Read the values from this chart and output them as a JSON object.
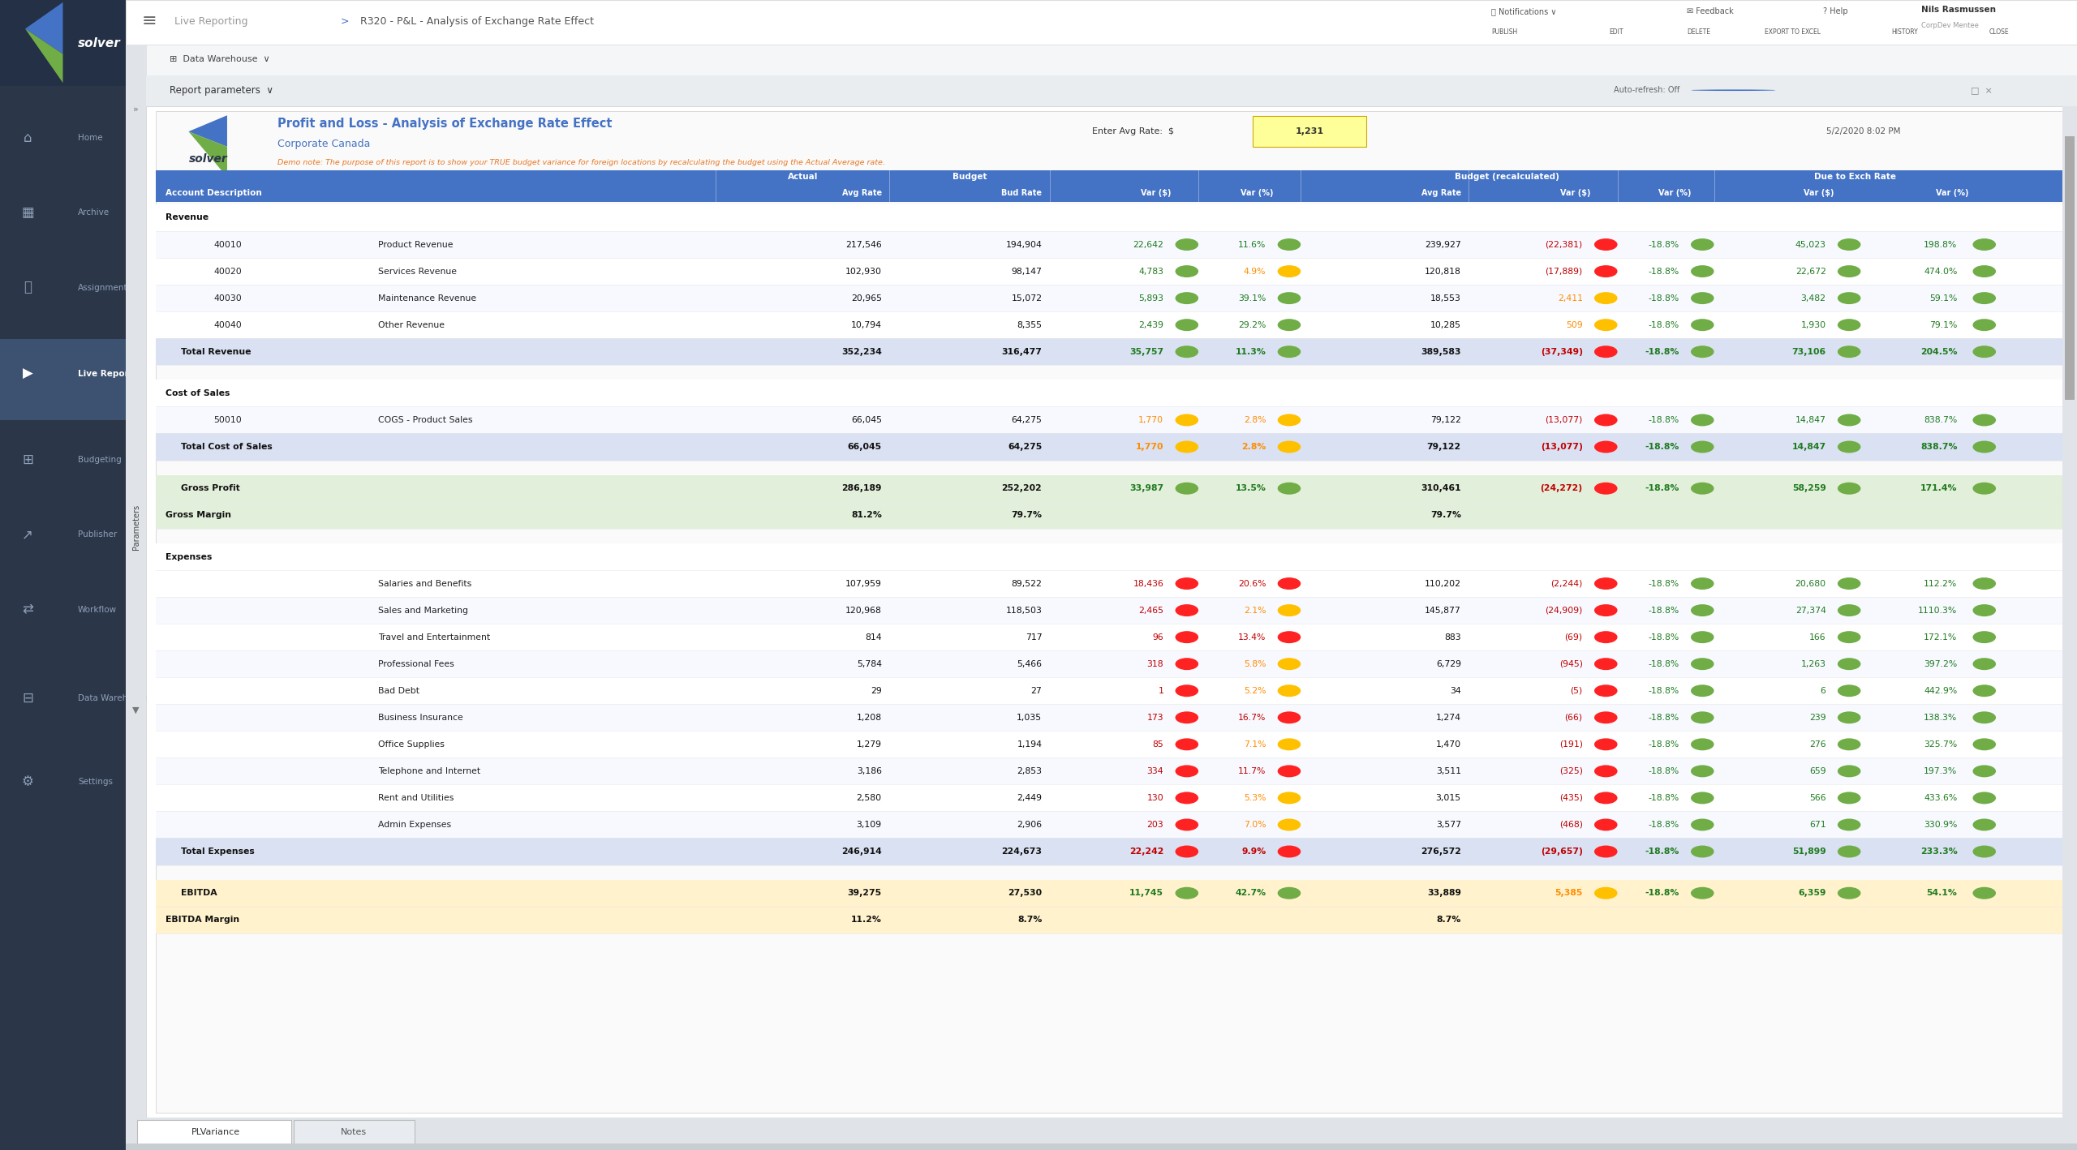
{
  "title": "Profit and Loss - Analysis of Exchange Rate Effect",
  "subtitle": "Corporate Canada",
  "avg_rate_label": "Enter Avg Rate: $",
  "avg_rate_value": "1,231",
  "date": "5/2/2020 8:02 PM",
  "demo_note": "Demo note: The purpose of this report is to show your TRUE budget variance for foreign locations by recalculating the budget using the Actual Average rate.",
  "header_bg": "#4472C4",
  "total_row_bg": "#D9E1F2",
  "gross_profit_bg": "#E2EFDA",
  "ebitda_bg": "#FFF2CC",
  "nav_color": "#2D3748",
  "nav_active": "#3D5270",
  "rows": [
    {
      "type": "section",
      "label": "Revenue"
    },
    {
      "type": "data",
      "code": "40010",
      "desc": "Product Revenue",
      "actual": "217,546",
      "budget": "194,904",
      "var_s": "22,642",
      "var_pct": "11.6%",
      "bud_recalc": "239,927",
      "var_s2": "(22,381)",
      "var_pct2": "-18.8%",
      "due_s": "45,023",
      "due_pct": "198.8%",
      "var_s_color": "green",
      "var_pct_color": "green",
      "var_s2_color": "red",
      "var_pct2_color": "green",
      "due_s_color": "green",
      "due_pct_color": "green"
    },
    {
      "type": "data",
      "code": "40020",
      "desc": "Services Revenue",
      "actual": "102,930",
      "budget": "98,147",
      "var_s": "4,783",
      "var_pct": "4.9%",
      "bud_recalc": "120,818",
      "var_s2": "(17,889)",
      "var_pct2": "-18.8%",
      "due_s": "22,672",
      "due_pct": "474.0%",
      "var_s_color": "green",
      "var_pct_color": "orange",
      "var_s2_color": "red",
      "var_pct2_color": "green",
      "due_s_color": "green",
      "due_pct_color": "green"
    },
    {
      "type": "data",
      "code": "40030",
      "desc": "Maintenance Revenue",
      "actual": "20,965",
      "budget": "15,072",
      "var_s": "5,893",
      "var_pct": "39.1%",
      "bud_recalc": "18,553",
      "var_s2": "2,411",
      "var_pct2": "-18.8%",
      "due_s": "3,482",
      "due_pct": "59.1%",
      "var_s_color": "green",
      "var_pct_color": "green",
      "var_s2_color": "orange",
      "var_pct2_color": "green",
      "due_s_color": "green",
      "due_pct_color": "green"
    },
    {
      "type": "data",
      "code": "40040",
      "desc": "Other Revenue",
      "actual": "10,794",
      "budget": "8,355",
      "var_s": "2,439",
      "var_pct": "29.2%",
      "bud_recalc": "10,285",
      "var_s2": "509",
      "var_pct2": "-18.8%",
      "due_s": "1,930",
      "due_pct": "79.1%",
      "var_s_color": "green",
      "var_pct_color": "green",
      "var_s2_color": "orange",
      "var_pct2_color": "green",
      "due_s_color": "green",
      "due_pct_color": "green"
    },
    {
      "type": "total",
      "label": "Total Revenue",
      "actual": "352,234",
      "budget": "316,477",
      "var_s": "35,757",
      "var_pct": "11.3%",
      "bud_recalc": "389,583",
      "var_s2": "(37,349)",
      "var_pct2": "-18.8%",
      "due_s": "73,106",
      "due_pct": "204.5%",
      "var_s_color": "green",
      "var_pct_color": "green",
      "var_s2_color": "red",
      "var_pct2_color": "green",
      "due_s_color": "green",
      "due_pct_color": "green"
    },
    {
      "type": "blank"
    },
    {
      "type": "section",
      "label": "Cost of Sales"
    },
    {
      "type": "data",
      "code": "50010",
      "desc": "COGS - Product Sales",
      "actual": "66,045",
      "budget": "64,275",
      "var_s": "1,770",
      "var_pct": "2.8%",
      "bud_recalc": "79,122",
      "var_s2": "(13,077)",
      "var_pct2": "-18.8%",
      "due_s": "14,847",
      "due_pct": "838.7%",
      "var_s_color": "orange",
      "var_pct_color": "orange",
      "var_s2_color": "red",
      "var_pct2_color": "green",
      "due_s_color": "green",
      "due_pct_color": "green"
    },
    {
      "type": "total",
      "label": "Total Cost of Sales",
      "actual": "66,045",
      "budget": "64,275",
      "var_s": "1,770",
      "var_pct": "2.8%",
      "bud_recalc": "79,122",
      "var_s2": "(13,077)",
      "var_pct2": "-18.8%",
      "due_s": "14,847",
      "due_pct": "838.7%",
      "var_s_color": "orange",
      "var_pct_color": "orange",
      "var_s2_color": "red",
      "var_pct2_color": "green",
      "due_s_color": "green",
      "due_pct_color": "green"
    },
    {
      "type": "blank"
    },
    {
      "type": "gross_profit",
      "label": "Gross Profit",
      "actual": "286,189",
      "budget": "252,202",
      "var_s": "33,987",
      "var_pct": "13.5%",
      "bud_recalc": "310,461",
      "var_s2": "(24,272)",
      "var_pct2": "-18.8%",
      "due_s": "58,259",
      "due_pct": "171.4%",
      "var_s_color": "green",
      "var_pct_color": "green",
      "var_s2_color": "red",
      "var_pct2_color": "green",
      "due_s_color": "green",
      "due_pct_color": "green"
    },
    {
      "type": "gross_margin",
      "label": "Gross Margin",
      "actual": "81.2%",
      "budget": "79.7%",
      "bud_recalc": "79.7%"
    },
    {
      "type": "blank"
    },
    {
      "type": "section",
      "label": "Expenses"
    },
    {
      "type": "data",
      "code": "",
      "desc": "Salaries and Benefits",
      "actual": "107,959",
      "budget": "89,522",
      "var_s": "18,436",
      "var_pct": "20.6%",
      "bud_recalc": "110,202",
      "var_s2": "(2,244)",
      "var_pct2": "-18.8%",
      "due_s": "20,680",
      "due_pct": "112.2%",
      "var_s_color": "red",
      "var_pct_color": "red",
      "var_s2_color": "red",
      "var_pct2_color": "green",
      "due_s_color": "green",
      "due_pct_color": "green"
    },
    {
      "type": "data",
      "code": "",
      "desc": "Sales and Marketing",
      "actual": "120,968",
      "budget": "118,503",
      "var_s": "2,465",
      "var_pct": "2.1%",
      "bud_recalc": "145,877",
      "var_s2": "(24,909)",
      "var_pct2": "-18.8%",
      "due_s": "27,374",
      "due_pct": "1110.3%",
      "var_s_color": "red",
      "var_pct_color": "orange",
      "var_s2_color": "red",
      "var_pct2_color": "green",
      "due_s_color": "green",
      "due_pct_color": "green"
    },
    {
      "type": "data",
      "code": "",
      "desc": "Travel and Entertainment",
      "actual": "814",
      "budget": "717",
      "var_s": "96",
      "var_pct": "13.4%",
      "bud_recalc": "883",
      "var_s2": "(69)",
      "var_pct2": "-18.8%",
      "due_s": "166",
      "due_pct": "172.1%",
      "var_s_color": "red",
      "var_pct_color": "red",
      "var_s2_color": "red",
      "var_pct2_color": "green",
      "due_s_color": "green",
      "due_pct_color": "green"
    },
    {
      "type": "data",
      "code": "",
      "desc": "Professional Fees",
      "actual": "5,784",
      "budget": "5,466",
      "var_s": "318",
      "var_pct": "5.8%",
      "bud_recalc": "6,729",
      "var_s2": "(945)",
      "var_pct2": "-18.8%",
      "due_s": "1,263",
      "due_pct": "397.2%",
      "var_s_color": "red",
      "var_pct_color": "orange",
      "var_s2_color": "red",
      "var_pct2_color": "green",
      "due_s_color": "green",
      "due_pct_color": "green"
    },
    {
      "type": "data",
      "code": "",
      "desc": "Bad Debt",
      "actual": "29",
      "budget": "27",
      "var_s": "1",
      "var_pct": "5.2%",
      "bud_recalc": "34",
      "var_s2": "(5)",
      "var_pct2": "-18.8%",
      "due_s": "6",
      "due_pct": "442.9%",
      "var_s_color": "red",
      "var_pct_color": "orange",
      "var_s2_color": "red",
      "var_pct2_color": "green",
      "due_s_color": "green",
      "due_pct_color": "green"
    },
    {
      "type": "data",
      "code": "",
      "desc": "Business Insurance",
      "actual": "1,208",
      "budget": "1,035",
      "var_s": "173",
      "var_pct": "16.7%",
      "bud_recalc": "1,274",
      "var_s2": "(66)",
      "var_pct2": "-18.8%",
      "due_s": "239",
      "due_pct": "138.3%",
      "var_s_color": "red",
      "var_pct_color": "red",
      "var_s2_color": "red",
      "var_pct2_color": "green",
      "due_s_color": "green",
      "due_pct_color": "green"
    },
    {
      "type": "data",
      "code": "",
      "desc": "Office Supplies",
      "actual": "1,279",
      "budget": "1,194",
      "var_s": "85",
      "var_pct": "7.1%",
      "bud_recalc": "1,470",
      "var_s2": "(191)",
      "var_pct2": "-18.8%",
      "due_s": "276",
      "due_pct": "325.7%",
      "var_s_color": "red",
      "var_pct_color": "orange",
      "var_s2_color": "red",
      "var_pct2_color": "green",
      "due_s_color": "green",
      "due_pct_color": "green"
    },
    {
      "type": "data",
      "code": "",
      "desc": "Telephone and Internet",
      "actual": "3,186",
      "budget": "2,853",
      "var_s": "334",
      "var_pct": "11.7%",
      "bud_recalc": "3,511",
      "var_s2": "(325)",
      "var_pct2": "-18.8%",
      "due_s": "659",
      "due_pct": "197.3%",
      "var_s_color": "red",
      "var_pct_color": "red",
      "var_s2_color": "red",
      "var_pct2_color": "green",
      "due_s_color": "green",
      "due_pct_color": "green"
    },
    {
      "type": "data",
      "code": "",
      "desc": "Rent and Utilities",
      "actual": "2,580",
      "budget": "2,449",
      "var_s": "130",
      "var_pct": "5.3%",
      "bud_recalc": "3,015",
      "var_s2": "(435)",
      "var_pct2": "-18.8%",
      "due_s": "566",
      "due_pct": "433.6%",
      "var_s_color": "red",
      "var_pct_color": "orange",
      "var_s2_color": "red",
      "var_pct2_color": "green",
      "due_s_color": "green",
      "due_pct_color": "green"
    },
    {
      "type": "data",
      "code": "",
      "desc": "Admin Expenses",
      "actual": "3,109",
      "budget": "2,906",
      "var_s": "203",
      "var_pct": "7.0%",
      "bud_recalc": "3,577",
      "var_s2": "(468)",
      "var_pct2": "-18.8%",
      "due_s": "671",
      "due_pct": "330.9%",
      "var_s_color": "red",
      "var_pct_color": "orange",
      "var_s2_color": "red",
      "var_pct2_color": "green",
      "due_s_color": "green",
      "due_pct_color": "green"
    },
    {
      "type": "total",
      "label": "Total Expenses",
      "actual": "246,914",
      "budget": "224,673",
      "var_s": "22,242",
      "var_pct": "9.9%",
      "bud_recalc": "276,572",
      "var_s2": "(29,657)",
      "var_pct2": "-18.8%",
      "due_s": "51,899",
      "due_pct": "233.3%",
      "var_s_color": "red",
      "var_pct_color": "red",
      "var_s2_color": "red",
      "var_pct2_color": "green",
      "due_s_color": "green",
      "due_pct_color": "green"
    },
    {
      "type": "blank"
    },
    {
      "type": "ebitda",
      "label": "EBITDA",
      "actual": "39,275",
      "budget": "27,530",
      "var_s": "11,745",
      "var_pct": "42.7%",
      "bud_recalc": "33,889",
      "var_s2": "5,385",
      "var_pct2": "-18.8%",
      "due_s": "6,359",
      "due_pct": "54.1%",
      "var_s_color": "green",
      "var_pct_color": "green",
      "var_s2_color": "orange",
      "var_pct2_color": "green",
      "due_s_color": "green",
      "due_pct_color": "green"
    },
    {
      "type": "ebitda_margin",
      "label": "EBITDA Margin",
      "actual": "11.2%",
      "budget": "8.7%",
      "bud_recalc": "8.7%"
    }
  ],
  "tab1": "PLVariance",
  "tab2": "Notes",
  "color_map": {
    "green": "#1F7A1F",
    "red": "#C00000",
    "orange": "#FF8C00"
  },
  "dot_colors": {
    "green": "#70AD47",
    "red": "#FF2222",
    "orange": "#FFC000"
  }
}
